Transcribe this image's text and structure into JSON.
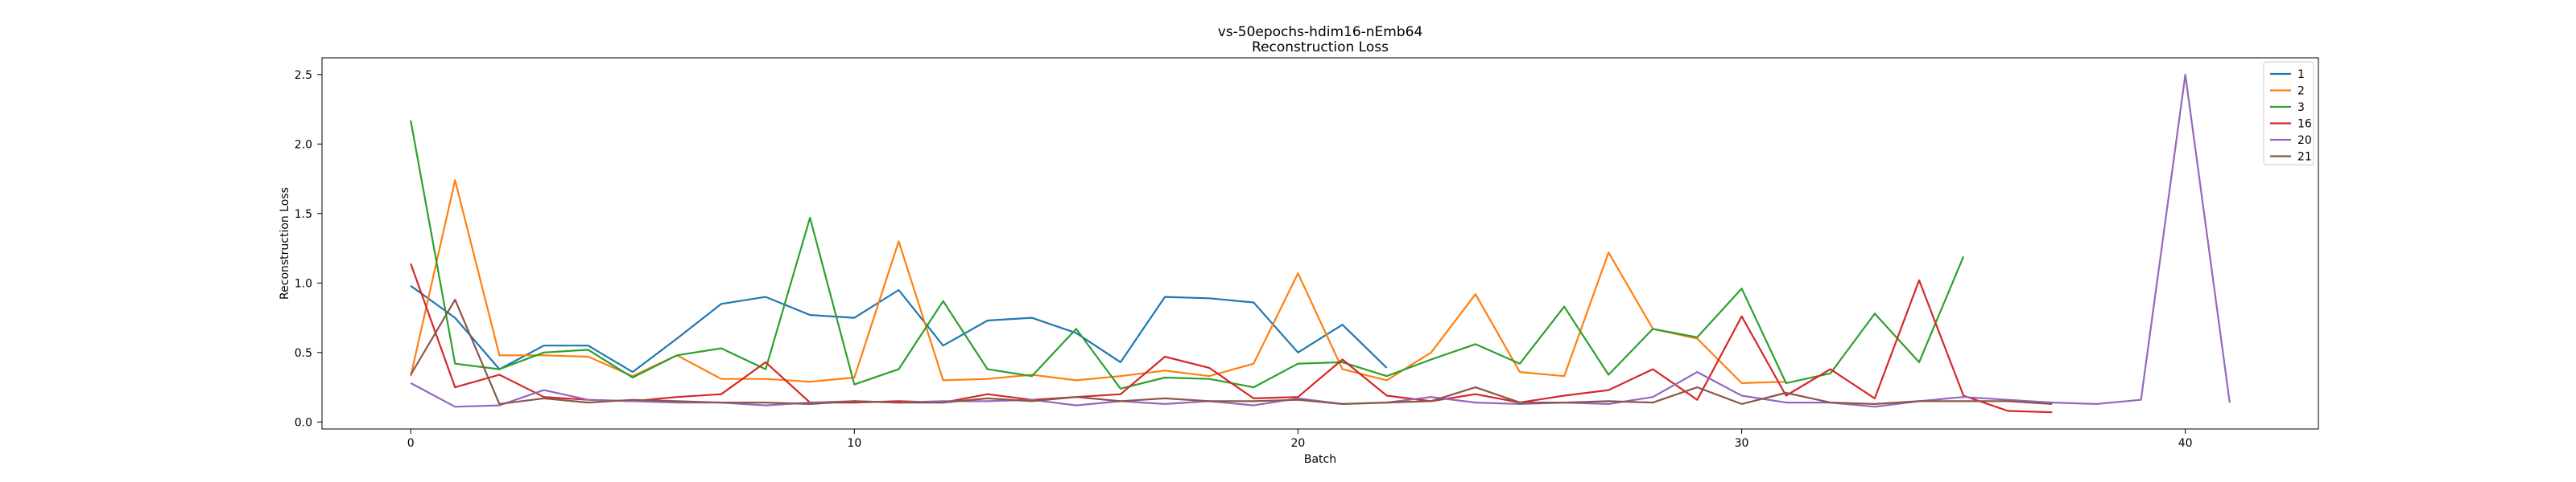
{
  "chart_data": {
    "type": "line",
    "title": "vs-50epochs-hdim16-nEmb64",
    "subtitle": "Reconstruction Loss",
    "xlabel": "Batch",
    "ylabel": "Reconstruction Loss",
    "xlim": [
      -2,
      43
    ],
    "ylim": [
      -0.05,
      2.62
    ],
    "xticks": [
      0,
      10,
      20,
      30,
      40
    ],
    "yticks": [
      0.0,
      0.5,
      1.0,
      1.5,
      2.0,
      2.5
    ],
    "ytick_labels": [
      "0.0",
      "0.5",
      "1.0",
      "1.5",
      "2.0",
      "2.5"
    ],
    "grid": false,
    "legend_position": "top-right",
    "series": [
      {
        "name": "1",
        "color": "#1f77b4",
        "x": [
          0,
          1,
          2,
          3,
          4,
          5,
          6,
          7,
          8,
          9,
          10,
          11,
          12,
          13,
          14,
          15,
          16,
          17,
          18,
          19,
          20,
          21,
          22
        ],
        "values": [
          0.98,
          0.75,
          0.38,
          0.55,
          0.55,
          0.36,
          0.6,
          0.85,
          0.9,
          0.77,
          0.75,
          0.95,
          0.55,
          0.73,
          0.75,
          0.64,
          0.43,
          0.9,
          0.89,
          0.86,
          0.5,
          0.7,
          0.39
        ]
      },
      {
        "name": "2",
        "color": "#ff7f0e",
        "x": [
          0,
          1,
          2,
          3,
          4,
          5,
          6,
          7,
          8,
          9,
          10,
          11,
          12,
          13,
          14,
          15,
          16,
          17,
          18,
          19,
          20,
          21,
          22,
          23,
          24,
          25,
          26,
          27,
          28,
          29,
          30,
          31
        ],
        "values": [
          0.33,
          1.74,
          0.48,
          0.48,
          0.47,
          0.33,
          0.48,
          0.31,
          0.31,
          0.29,
          0.32,
          1.3,
          0.3,
          0.31,
          0.34,
          0.3,
          0.33,
          0.37,
          0.33,
          0.42,
          1.07,
          0.38,
          0.3,
          0.5,
          0.92,
          0.36,
          0.33,
          1.22,
          0.67,
          0.6,
          0.28,
          0.29
        ]
      },
      {
        "name": "3",
        "color": "#2ca02c",
        "x": [
          0,
          1,
          2,
          3,
          4,
          5,
          6,
          7,
          8,
          9,
          10,
          11,
          12,
          13,
          14,
          15,
          16,
          17,
          18,
          19,
          20,
          21,
          22,
          23,
          24,
          25,
          26,
          27,
          28,
          29,
          30,
          31,
          32,
          33,
          34,
          35
        ],
        "values": [
          2.17,
          0.42,
          0.38,
          0.5,
          0.52,
          0.32,
          0.48,
          0.53,
          0.38,
          1.47,
          0.27,
          0.38,
          0.87,
          0.38,
          0.33,
          0.67,
          0.24,
          0.32,
          0.31,
          0.25,
          0.42,
          0.43,
          0.33,
          0.45,
          0.56,
          0.42,
          0.83,
          0.34,
          0.67,
          0.61,
          0.96,
          0.28,
          0.35,
          0.78,
          0.43,
          1.19
        ]
      },
      {
        "name": "16",
        "color": "#d62728",
        "x": [
          0,
          1,
          2,
          3,
          4,
          5,
          6,
          7,
          8,
          9,
          10,
          11,
          12,
          13,
          14,
          15,
          16,
          17,
          18,
          19,
          20,
          21,
          22,
          23,
          24,
          25,
          26,
          27,
          28,
          29,
          30,
          31,
          32,
          33,
          34,
          35,
          36,
          37
        ],
        "values": [
          1.14,
          0.25,
          0.34,
          0.18,
          0.16,
          0.15,
          0.18,
          0.2,
          0.43,
          0.14,
          0.14,
          0.15,
          0.14,
          0.2,
          0.16,
          0.18,
          0.2,
          0.47,
          0.39,
          0.17,
          0.18,
          0.45,
          0.19,
          0.15,
          0.2,
          0.14,
          0.19,
          0.23,
          0.38,
          0.16,
          0.76,
          0.19,
          0.38,
          0.17,
          1.02,
          0.19,
          0.08,
          0.07
        ]
      },
      {
        "name": "20",
        "color": "#9467bd",
        "x": [
          0,
          1,
          2,
          3,
          4,
          5,
          6,
          7,
          8,
          9,
          10,
          11,
          12,
          13,
          14,
          15,
          16,
          17,
          18,
          19,
          20,
          21,
          22,
          23,
          24,
          25,
          26,
          27,
          28,
          29,
          30,
          31,
          32,
          33,
          34,
          35,
          36,
          37,
          38,
          39,
          40,
          41
        ],
        "values": [
          0.28,
          0.11,
          0.12,
          0.23,
          0.16,
          0.15,
          0.14,
          0.14,
          0.12,
          0.14,
          0.15,
          0.14,
          0.15,
          0.15,
          0.16,
          0.12,
          0.15,
          0.13,
          0.15,
          0.12,
          0.17,
          0.13,
          0.14,
          0.18,
          0.14,
          0.13,
          0.14,
          0.13,
          0.18,
          0.36,
          0.19,
          0.14,
          0.14,
          0.11,
          0.15,
          0.18,
          0.16,
          0.14,
          0.13,
          0.16,
          2.5,
          0.14
        ]
      },
      {
        "name": "21",
        "color": "#8c564b",
        "x": [
          0,
          1,
          2,
          3,
          4,
          5,
          6,
          7,
          8,
          9,
          10,
          11,
          12,
          13,
          14,
          15,
          16,
          17,
          18,
          19,
          20,
          21,
          22,
          23,
          24,
          25,
          26,
          27,
          28,
          29,
          30,
          31,
          32,
          33,
          34,
          35,
          36,
          37
        ],
        "values": [
          0.34,
          0.88,
          0.13,
          0.17,
          0.14,
          0.16,
          0.15,
          0.14,
          0.14,
          0.13,
          0.15,
          0.14,
          0.14,
          0.17,
          0.15,
          0.18,
          0.15,
          0.17,
          0.15,
          0.15,
          0.16,
          0.13,
          0.14,
          0.15,
          0.25,
          0.14,
          0.14,
          0.15,
          0.14,
          0.25,
          0.13,
          0.21,
          0.14,
          0.13,
          0.15,
          0.15,
          0.15,
          0.13
        ]
      }
    ]
  }
}
